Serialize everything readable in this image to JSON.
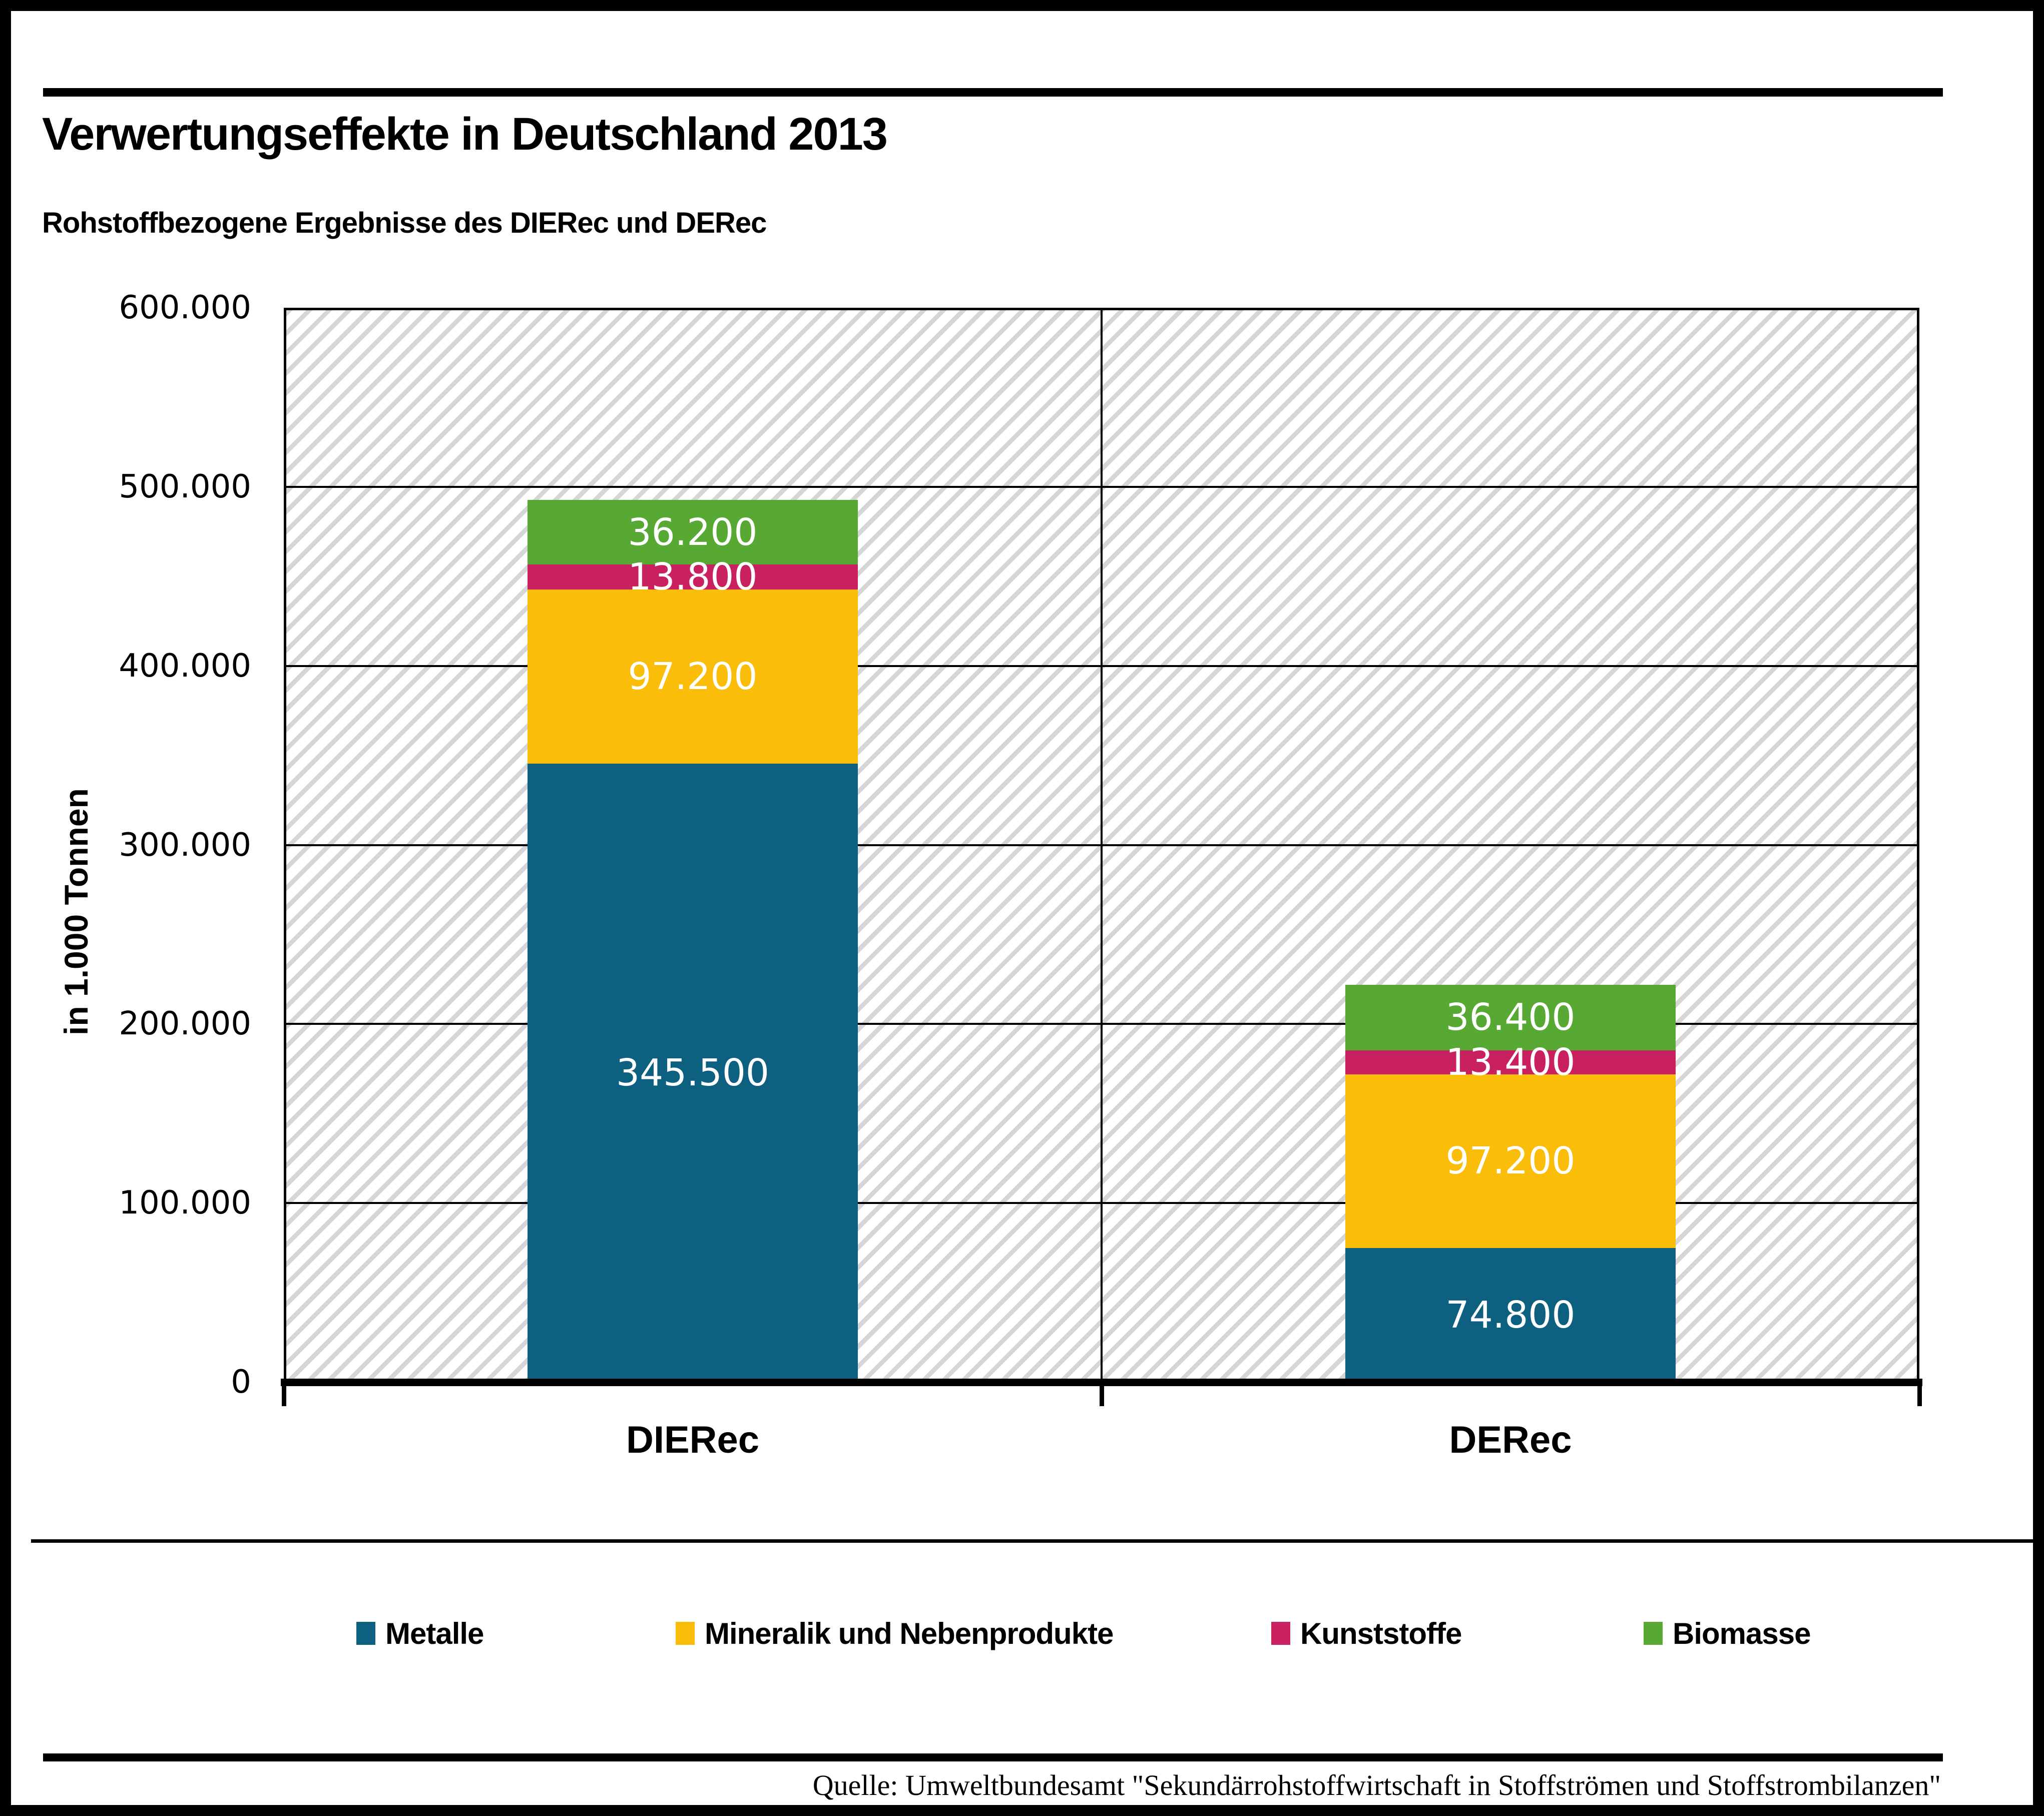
{
  "header": {
    "title": "Verwertungseffekte in Deutschland 2013",
    "subtitle": "Rohstoffbezogene Ergebnisse des DIERec und DERec"
  },
  "chart_data": {
    "type": "bar",
    "stacked": true,
    "title": "Verwertungseffekte in Deutschland 2013",
    "subtitle": "Rohstoffbezogene Ergebnisse des DIERec und DERec",
    "categories": [
      "DIERec",
      "DERec"
    ],
    "series": [
      {
        "name": "Metalle",
        "color": "#0D607F",
        "values": [
          345500,
          74800
        ],
        "labels": [
          "345.500",
          "74.800"
        ]
      },
      {
        "name": "Mineralik und Nebenprodukte",
        "color": "#FABD0A",
        "values": [
          97200,
          97200
        ],
        "labels": [
          "97.200",
          "97.200"
        ]
      },
      {
        "name": "Kunststoffe",
        "color": "#C92160",
        "values": [
          13800,
          13400
        ],
        "labels": [
          "13.800",
          "13.400"
        ]
      },
      {
        "name": "Biomasse",
        "color": "#58A933",
        "values": [
          36200,
          36400
        ],
        "labels": [
          "36.200",
          "36.400"
        ]
      }
    ],
    "xlabel": "",
    "ylabel": "in 1.000 Tonnen",
    "ylim": [
      0,
      600000
    ],
    "yticks": [
      "600.000",
      "500.000",
      "400.000",
      "300.000",
      "200.000",
      "100.000",
      "0"
    ],
    "grid": true,
    "legend_position": "bottom",
    "plot_background": "diagonal-hatch"
  },
  "footer": {
    "source": "Quelle: Umweltbundesamt \"Sekundärrohstoffwirtschaft in Stoffströmen und Stoffstrombilanzen\""
  }
}
